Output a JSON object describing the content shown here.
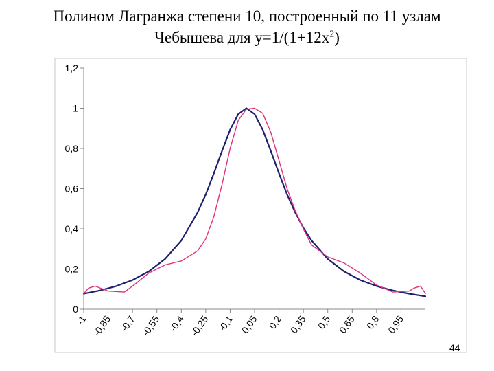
{
  "page": {
    "title_line1": "Полином Лагранжа степени 10, построенный по 11 узлам",
    "title_line2_prefix": "Чебышева для y=1/(1+12x",
    "title_sup": "2",
    "title_line2_suffix": ")",
    "slide_number": "44"
  },
  "chart_data": {
    "type": "line",
    "title": "",
    "xlabel": "",
    "ylabel": "",
    "xlim": [
      -1,
      1.1
    ],
    "ylim": [
      0,
      1.2
    ],
    "y_ticks": [
      0,
      0.2,
      0.4,
      0.6,
      0.8,
      1,
      1.2
    ],
    "y_tick_labels": [
      "0",
      "0,2",
      "0,4",
      "0,6",
      "0,8",
      "1",
      "1,2"
    ],
    "x_ticks": [
      -1,
      -0.85,
      -0.7,
      -0.55,
      -0.4,
      -0.25,
      -0.1,
      0.05,
      0.2,
      0.35,
      0.5,
      0.65,
      0.8,
      0.95
    ],
    "x_tick_labels": [
      "-1",
      "-0,85",
      "-0,7",
      "-0,55",
      "-0,4",
      "-0,25",
      "-0,1",
      "0,05",
      "0,2",
      "0,35",
      "0,5",
      "0,65",
      "0,8",
      "0,95"
    ],
    "grid": false,
    "legend": "none",
    "series": [
      {
        "color": "#1f1f6e",
        "x": [
          -1,
          -0.9,
          -0.8,
          -0.7,
          -0.6,
          -0.5,
          -0.4,
          -0.3,
          -0.25,
          -0.2,
          -0.15,
          -0.1,
          -0.05,
          0,
          0.05,
          0.1,
          0.15,
          0.2,
          0.25,
          0.3,
          0.35,
          0.4,
          0.5,
          0.6,
          0.7,
          0.8,
          0.9,
          1,
          1.1
        ],
        "y": [
          0.077,
          0.093,
          0.115,
          0.145,
          0.188,
          0.25,
          0.342,
          0.481,
          0.571,
          0.676,
          0.787,
          0.893,
          0.971,
          1.0,
          0.971,
          0.893,
          0.787,
          0.676,
          0.571,
          0.481,
          0.405,
          0.342,
          0.25,
          0.188,
          0.145,
          0.115,
          0.093,
          0.077,
          0.064
        ]
      },
      {
        "color": "#e0307a",
        "x": [
          -1,
          -0.97,
          -0.93,
          -0.85,
          -0.75,
          -0.7,
          -0.6,
          -0.55,
          -0.5,
          -0.4,
          -0.3,
          -0.25,
          -0.2,
          -0.15,
          -0.1,
          -0.05,
          0,
          0.05,
          0.1,
          0.15,
          0.2,
          0.25,
          0.3,
          0.35,
          0.4,
          0.5,
          0.6,
          0.7,
          0.8,
          0.9,
          1,
          1.03,
          1.07,
          1.1
        ],
        "y": [
          0.077,
          0.105,
          0.115,
          0.09,
          0.085,
          0.115,
          0.18,
          0.2,
          0.22,
          0.24,
          0.29,
          0.35,
          0.46,
          0.62,
          0.8,
          0.94,
          0.995,
          1.0,
          0.975,
          0.88,
          0.74,
          0.6,
          0.49,
          0.4,
          0.32,
          0.26,
          0.23,
          0.18,
          0.12,
          0.085,
          0.09,
          0.105,
          0.115,
          0.077
        ]
      }
    ]
  }
}
